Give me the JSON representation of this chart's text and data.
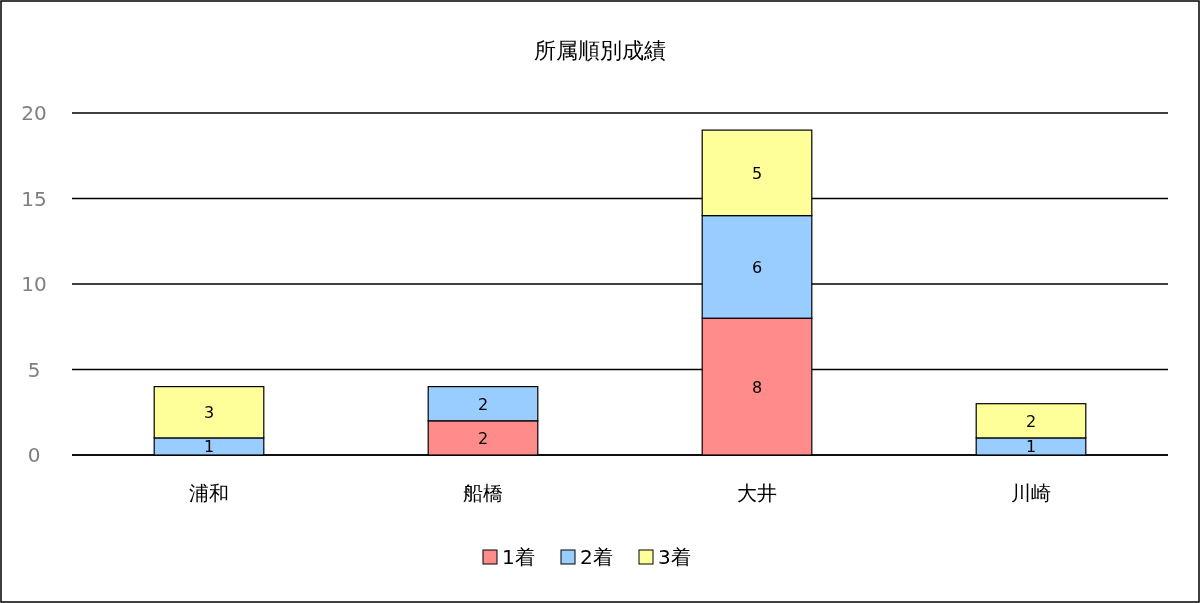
{
  "chart_data": {
    "type": "bar",
    "title": "所属順別成績",
    "categories": [
      "浦和",
      "船橋",
      "大井",
      "川崎"
    ],
    "stacked": true,
    "ylim": [
      0,
      20
    ],
    "yticks": [
      0,
      5,
      10,
      15,
      20
    ],
    "grid": "y",
    "legend": "bottom",
    "series": [
      {
        "name": "1着",
        "color": "#ff8b8b",
        "values": [
          0,
          2,
          8,
          0
        ],
        "value_labels": [
          null,
          "2",
          "8",
          null
        ]
      },
      {
        "name": "2着",
        "color": "#99ccff",
        "values": [
          1,
          2,
          6,
          1
        ],
        "value_labels": [
          "1",
          "2",
          "6",
          "1"
        ]
      },
      {
        "name": "3着",
        "color": "#ffff99",
        "values": [
          3,
          0,
          5,
          2
        ],
        "value_labels": [
          "3",
          null,
          "5",
          "2"
        ]
      }
    ]
  }
}
